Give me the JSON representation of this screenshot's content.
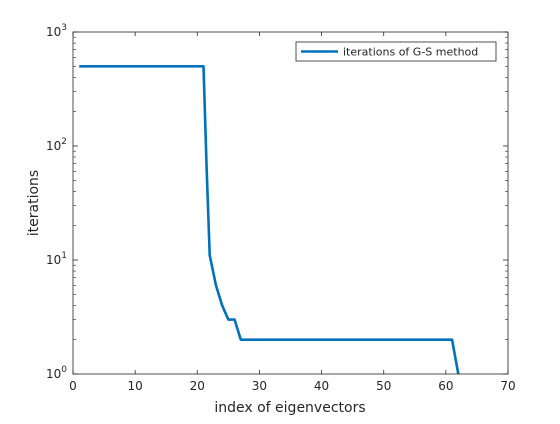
{
  "chart_data": {
    "type": "line",
    "title": "",
    "xlabel": "index of eigenvectors",
    "ylabel": "iterations",
    "xlim": [
      0,
      70
    ],
    "ylim": [
      1,
      1000
    ],
    "y_scale": "log",
    "x_ticks": [
      0,
      10,
      20,
      30,
      40,
      50,
      60,
      70
    ],
    "x_tick_labels": [
      "0",
      "10",
      "20",
      "30",
      "40",
      "50",
      "60",
      "70"
    ],
    "y_ticks": [
      1,
      10,
      100,
      1000
    ],
    "y_tick_labels": [
      {
        "base": "10",
        "exp": "0"
      },
      {
        "base": "10",
        "exp": "1"
      },
      {
        "base": "10",
        "exp": "2"
      },
      {
        "base": "10",
        "exp": "3"
      }
    ],
    "grid": false,
    "legend_position": "top-right",
    "series": [
      {
        "name": "iterations of G-S method",
        "color": "#0072BD",
        "x": [
          1,
          2,
          3,
          4,
          5,
          6,
          7,
          8,
          9,
          10,
          11,
          12,
          13,
          14,
          15,
          16,
          17,
          18,
          19,
          20,
          21,
          21.5,
          22,
          23,
          24,
          25,
          26,
          27,
          28,
          29,
          30,
          31,
          32,
          33,
          34,
          35,
          36,
          37,
          38,
          39,
          40,
          41,
          42,
          43,
          44,
          45,
          46,
          47,
          48,
          49,
          50,
          51,
          52,
          53,
          54,
          55,
          56,
          57,
          58,
          59,
          60,
          61,
          62
        ],
        "y": [
          500,
          500,
          500,
          500,
          500,
          500,
          500,
          500,
          500,
          500,
          500,
          500,
          500,
          500,
          500,
          500,
          500,
          500,
          500,
          500,
          500,
          65,
          11,
          6,
          4,
          3,
          3,
          2,
          2,
          2,
          2,
          2,
          2,
          2,
          2,
          2,
          2,
          2,
          2,
          2,
          2,
          2,
          2,
          2,
          2,
          2,
          2,
          2,
          2,
          2,
          2,
          2,
          2,
          2,
          2,
          2,
          2,
          2,
          2,
          2,
          2,
          2,
          1
        ]
      }
    ]
  }
}
